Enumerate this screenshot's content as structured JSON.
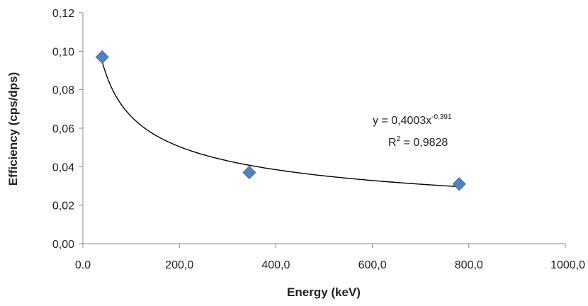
{
  "chart_data": {
    "type": "scatter",
    "title": "",
    "xlabel": "Energy (keV)",
    "ylabel": "Efficiency (cps/dps)",
    "xlim": [
      0,
      1000
    ],
    "ylim": [
      0,
      0.12
    ],
    "x_ticks": [
      0,
      200,
      400,
      600,
      800,
      1000
    ],
    "x_tick_labels": [
      "0.0",
      "200,0",
      "400,0",
      "600,0",
      "800,0",
      "1000,0"
    ],
    "y_ticks": [
      0,
      0.02,
      0.04,
      0.06,
      0.08,
      0.1,
      0.12
    ],
    "y_tick_labels": [
      "0,00",
      "0,02",
      "0,04",
      "0,06",
      "0,08",
      "0,10",
      "0,12"
    ],
    "series": [
      {
        "marker": "diamond",
        "color": "#4F81BD",
        "points": [
          {
            "x": 40,
            "y": 0.097
          },
          {
            "x": 345,
            "y": 0.037
          },
          {
            "x": 780,
            "y": 0.031
          }
        ]
      }
    ],
    "trendline": {
      "type": "power",
      "a": 0.4003,
      "b": -0.391,
      "x_range": [
        40,
        780
      ],
      "color": "#000000",
      "equation": {
        "prefix": "y = 0,4003x",
        "exponent": "-0,391"
      },
      "r_squared": {
        "prefix": "R",
        "exponent": "2",
        "suffix": " = 0,9828"
      }
    },
    "grid": false,
    "legend": "none"
  }
}
